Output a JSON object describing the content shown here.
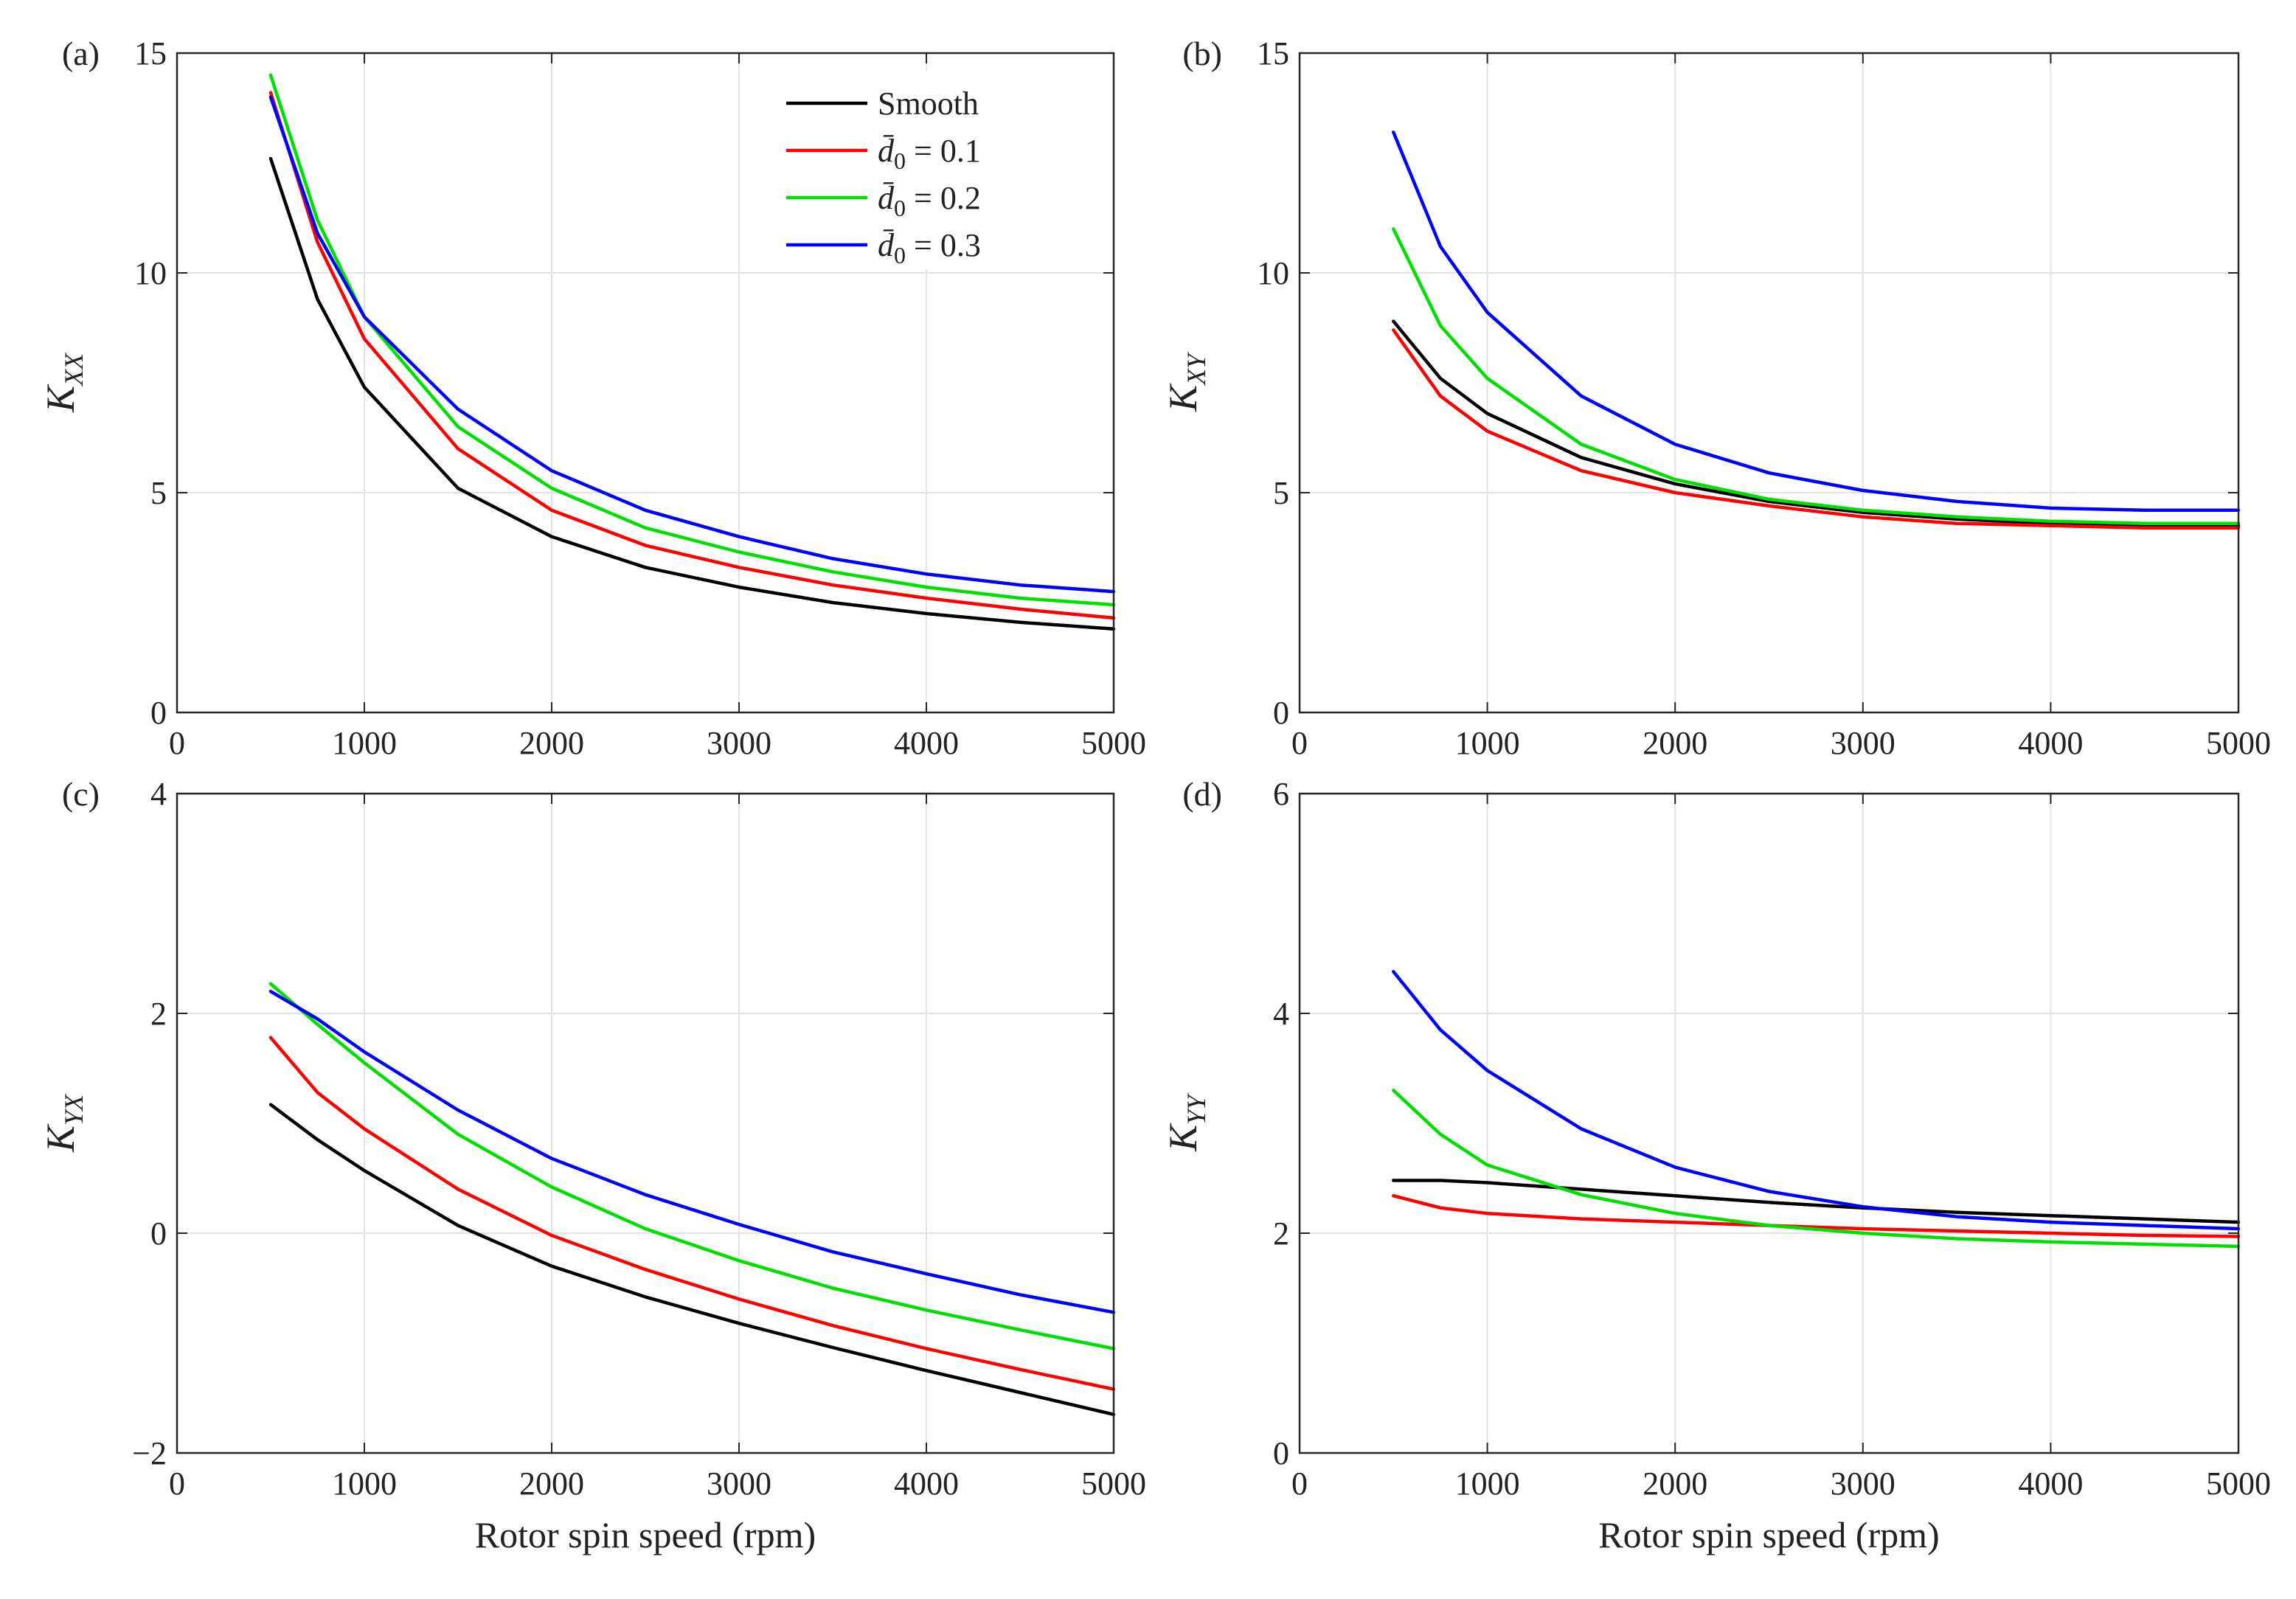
{
  "figure": {
    "xlabel": "Rotor spin speed (rpm)",
    "legend": [
      {
        "label": "Smooth",
        "color": "#000000"
      },
      {
        "label": "d̄0 = 0.1",
        "sym": "d̄",
        "sub": "0",
        "rest": " = 0.1",
        "color": "#ff0000"
      },
      {
        "label": "d̄0 = 0.2",
        "sym": "d̄",
        "sub": "0",
        "rest": " = 0.2",
        "color": "#00e000"
      },
      {
        "label": "d̄0 = 0.3",
        "sym": "d̄",
        "sub": "0",
        "rest": " = 0.3",
        "color": "#0000ff"
      }
    ]
  },
  "chart_data": [
    {
      "type": "line",
      "panel": "(a)",
      "ylabel": "K_XX",
      "ylabel_main": "K",
      "ylabel_sub": "XX",
      "xlim": [
        0,
        5000
      ],
      "ylim": [
        0,
        15
      ],
      "xticks": [
        0,
        1000,
        2000,
        3000,
        4000,
        5000
      ],
      "yticks": [
        0,
        5,
        10,
        15
      ],
      "grid": true,
      "legend_position": "top-right",
      "x": [
        500,
        750,
        1000,
        1500,
        2000,
        2500,
        3000,
        3500,
        4000,
        4500,
        5000
      ],
      "series": [
        {
          "name": "Smooth",
          "color": "#000000",
          "values": [
            12.6,
            9.4,
            7.4,
            5.1,
            4.0,
            3.3,
            2.85,
            2.5,
            2.25,
            2.05,
            1.9
          ]
        },
        {
          "name": "d̄0 = 0.1",
          "color": "#ff0000",
          "values": [
            14.1,
            10.7,
            8.5,
            6.0,
            4.6,
            3.8,
            3.3,
            2.9,
            2.6,
            2.35,
            2.15
          ]
        },
        {
          "name": "d̄0 = 0.2",
          "color": "#00e000",
          "values": [
            14.5,
            11.2,
            9.0,
            6.5,
            5.1,
            4.2,
            3.65,
            3.2,
            2.85,
            2.6,
            2.45
          ]
        },
        {
          "name": "d̄0 = 0.3",
          "color": "#0000ff",
          "values": [
            14.0,
            10.9,
            9.0,
            6.9,
            5.5,
            4.6,
            4.0,
            3.5,
            3.15,
            2.9,
            2.75
          ]
        }
      ]
    },
    {
      "type": "line",
      "panel": "(b)",
      "ylabel": "K_XY",
      "ylabel_main": "K",
      "ylabel_sub": "XY",
      "xlim": [
        0,
        5000
      ],
      "ylim": [
        0,
        15
      ],
      "xticks": [
        0,
        1000,
        2000,
        3000,
        4000,
        5000
      ],
      "yticks": [
        0,
        5,
        10,
        15
      ],
      "grid": true,
      "x": [
        500,
        750,
        1000,
        1500,
        2000,
        2500,
        3000,
        3500,
        4000,
        4500,
        5000
      ],
      "series": [
        {
          "name": "Smooth",
          "color": "#000000",
          "values": [
            8.9,
            7.6,
            6.8,
            5.8,
            5.2,
            4.8,
            4.55,
            4.4,
            4.3,
            4.25,
            4.25
          ]
        },
        {
          "name": "d̄0 = 0.1",
          "color": "#ff0000",
          "values": [
            8.7,
            7.2,
            6.4,
            5.5,
            5.0,
            4.7,
            4.45,
            4.3,
            4.25,
            4.2,
            4.2
          ]
        },
        {
          "name": "d̄0 = 0.2",
          "color": "#00e000",
          "values": [
            11.0,
            8.8,
            7.6,
            6.1,
            5.3,
            4.85,
            4.6,
            4.45,
            4.35,
            4.3,
            4.3
          ]
        },
        {
          "name": "d̄0 = 0.3",
          "color": "#0000ff",
          "values": [
            13.2,
            10.6,
            9.1,
            7.2,
            6.1,
            5.45,
            5.05,
            4.8,
            4.65,
            4.6,
            4.6
          ]
        }
      ]
    },
    {
      "type": "line",
      "panel": "(c)",
      "ylabel": "K_YX",
      "ylabel_main": "K",
      "ylabel_sub": "YX",
      "xlim": [
        0,
        5000
      ],
      "ylim": [
        -2,
        4
      ],
      "xticks": [
        0,
        1000,
        2000,
        3000,
        4000,
        5000
      ],
      "yticks": [
        -2,
        0,
        2,
        4
      ],
      "grid": true,
      "x": [
        500,
        750,
        1000,
        1500,
        2000,
        2500,
        3000,
        3500,
        4000,
        4500,
        5000
      ],
      "series": [
        {
          "name": "Smooth",
          "color": "#000000",
          "values": [
            1.17,
            0.85,
            0.57,
            0.07,
            -0.3,
            -0.58,
            -0.82,
            -1.04,
            -1.25,
            -1.45,
            -1.65
          ]
        },
        {
          "name": "d̄0 = 0.1",
          "color": "#ff0000",
          "values": [
            1.78,
            1.28,
            0.95,
            0.4,
            -0.02,
            -0.33,
            -0.6,
            -0.84,
            -1.05,
            -1.24,
            -1.42
          ]
        },
        {
          "name": "d̄0 = 0.2",
          "color": "#00e000",
          "values": [
            2.27,
            1.9,
            1.55,
            0.9,
            0.42,
            0.04,
            -0.25,
            -0.5,
            -0.7,
            -0.88,
            -1.05
          ]
        },
        {
          "name": "d̄0 = 0.3",
          "color": "#0000ff",
          "values": [
            2.2,
            1.95,
            1.65,
            1.12,
            0.68,
            0.35,
            0.08,
            -0.17,
            -0.37,
            -0.56,
            -0.72
          ]
        }
      ]
    },
    {
      "type": "line",
      "panel": "(d)",
      "ylabel": "K_YY",
      "ylabel_main": "K",
      "ylabel_sub": "YY",
      "xlim": [
        0,
        5000
      ],
      "ylim": [
        0,
        6
      ],
      "xticks": [
        0,
        1000,
        2000,
        3000,
        4000,
        5000
      ],
      "yticks": [
        0,
        2,
        4,
        6
      ],
      "grid": true,
      "x": [
        500,
        750,
        1000,
        1500,
        2000,
        2500,
        3000,
        3500,
        4000,
        4500,
        5000
      ],
      "series": [
        {
          "name": "Smooth",
          "color": "#000000",
          "values": [
            2.48,
            2.48,
            2.46,
            2.4,
            2.34,
            2.28,
            2.23,
            2.19,
            2.16,
            2.13,
            2.1
          ]
        },
        {
          "name": "d̄0 = 0.1",
          "color": "#ff0000",
          "values": [
            2.34,
            2.23,
            2.18,
            2.13,
            2.1,
            2.07,
            2.04,
            2.02,
            2.0,
            1.98,
            1.97
          ]
        },
        {
          "name": "d̄0 = 0.2",
          "color": "#00e000",
          "values": [
            3.3,
            2.9,
            2.62,
            2.35,
            2.18,
            2.07,
            2.0,
            1.95,
            1.92,
            1.9,
            1.88
          ]
        },
        {
          "name": "d̄0 = 0.3",
          "color": "#0000ff",
          "values": [
            4.38,
            3.85,
            3.48,
            2.95,
            2.6,
            2.38,
            2.24,
            2.15,
            2.1,
            2.07,
            2.04
          ]
        }
      ]
    }
  ]
}
